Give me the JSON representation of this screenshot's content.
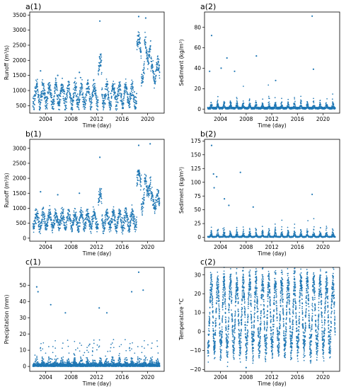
{
  "chart_data": [
    {
      "panel": "a(1)",
      "type": "scatter",
      "title": "a(1)",
      "xlabel": "Time (day)",
      "ylabel": "Runoff (m³/s)",
      "xlim": [
        2001.5,
        2022.6
      ],
      "ylim": [
        250,
        3600
      ],
      "xticks": [
        "2004",
        "2008",
        "2012",
        "2016",
        "2020"
      ],
      "yticks": [
        "500",
        "1000",
        "1500",
        "2000",
        "2500",
        "3000",
        "3500"
      ],
      "series": [
        {
          "kind": "runoff",
          "peaks": [
            {
              "x": 2012.5,
              "y": 3300
            },
            {
              "x": 2018.6,
              "y": 3450
            },
            {
              "x": 2019.7,
              "y": 3400
            },
            {
              "x": 2003.2,
              "y": 1650
            },
            {
              "x": 2005.9,
              "y": 1500
            },
            {
              "x": 2009.3,
              "y": 1600
            }
          ]
        }
      ],
      "color": "#1f77b4"
    },
    {
      "panel": "a(2)",
      "type": "scatter",
      "title": "a(2)",
      "xlabel": "Time (day)",
      "ylabel": "Sediment (kg/m³)",
      "xlim": [
        2001.5,
        2022.6
      ],
      "ylim": [
        -4,
        95
      ],
      "xticks": [
        "2004",
        "2008",
        "2012",
        "2016",
        "2020"
      ],
      "yticks": [
        "0",
        "20",
        "40",
        "60",
        "80"
      ],
      "series": [
        {
          "kind": "sediment",
          "peaks": [
            {
              "x": 2002.6,
              "y": 72
            },
            {
              "x": 2009.6,
              "y": 52
            },
            {
              "x": 2005.0,
              "y": 50
            },
            {
              "x": 2018.3,
              "y": 91
            },
            {
              "x": 2018.5,
              "y": 39
            },
            {
              "x": 2004.1,
              "y": 40
            },
            {
              "x": 2006.2,
              "y": 37
            },
            {
              "x": 2002.3,
              "y": 37
            },
            {
              "x": 2012.6,
              "y": 28
            }
          ]
        }
      ],
      "color": "#1f77b4"
    },
    {
      "panel": "b(1)",
      "type": "scatter",
      "title": "b(1)",
      "xlabel": "Time (day)",
      "ylabel": "Runoff (m³/s)",
      "xlim": [
        2001.5,
        2022.6
      ],
      "ylim": [
        -100,
        3300
      ],
      "xticks": [
        "2004",
        "2008",
        "2012",
        "2016",
        "2020"
      ],
      "yticks": [
        "0",
        "500",
        "1000",
        "1500",
        "2000",
        "2500",
        "3000"
      ],
      "series": [
        {
          "kind": "runoff",
          "peaks": [
            {
              "x": 2012.5,
              "y": 2700
            },
            {
              "x": 2018.6,
              "y": 3100
            },
            {
              "x": 2020.4,
              "y": 3150
            },
            {
              "x": 2003.2,
              "y": 1550
            },
            {
              "x": 2005.9,
              "y": 1450
            },
            {
              "x": 2009.3,
              "y": 1500
            }
          ]
        }
      ],
      "color": "#1f77b4"
    },
    {
      "panel": "b(2)",
      "type": "scatter",
      "title": "b(2)",
      "xlabel": "Time (day)",
      "ylabel": "Sediment (kg/m³)",
      "xlim": [
        2001.5,
        2022.6
      ],
      "ylim": [
        -7,
        178
      ],
      "xticks": [
        "2004",
        "2008",
        "2012",
        "2016",
        "2020"
      ],
      "yticks": [
        "0",
        "25",
        "50",
        "75",
        "100",
        "125",
        "150",
        "175"
      ],
      "series": [
        {
          "kind": "sediment",
          "peaks": [
            {
              "x": 2002.6,
              "y": 167
            },
            {
              "x": 2002.9,
              "y": 115
            },
            {
              "x": 2003.4,
              "y": 110
            },
            {
              "x": 2007.1,
              "y": 118
            },
            {
              "x": 2003.0,
              "y": 90
            },
            {
              "x": 2018.3,
              "y": 78
            },
            {
              "x": 2004.6,
              "y": 70
            },
            {
              "x": 2005.3,
              "y": 58
            },
            {
              "x": 2009.1,
              "y": 55
            }
          ]
        }
      ],
      "color": "#1f77b4"
    },
    {
      "panel": "c(1)",
      "type": "scatter",
      "title": "c(1)",
      "xlabel": "Time (day)",
      "ylabel": "Precipitation (mm)",
      "xlim": [
        2001.5,
        2022.6
      ],
      "ylim": [
        -3,
        61
      ],
      "xticks": [
        "2004",
        "2008",
        "2012",
        "2016",
        "2020"
      ],
      "yticks": [
        "0",
        "10",
        "20",
        "30",
        "40",
        "50"
      ],
      "series": [
        {
          "kind": "precip",
          "peaks": [
            {
              "x": 2018.6,
              "y": 58
            },
            {
              "x": 2002.6,
              "y": 49
            },
            {
              "x": 2002.8,
              "y": 46
            },
            {
              "x": 2019.3,
              "y": 47
            },
            {
              "x": 2017.5,
              "y": 46
            },
            {
              "x": 2004.8,
              "y": 38
            },
            {
              "x": 2012.4,
              "y": 36
            },
            {
              "x": 2007.1,
              "y": 33
            },
            {
              "x": 2013.6,
              "y": 33
            }
          ]
        }
      ],
      "color": "#1f77b4"
    },
    {
      "panel": "c(2)",
      "type": "scatter",
      "title": "c(2)",
      "xlabel": "Time (day)",
      "ylabel": "Temperature °C",
      "xlim": [
        2001.5,
        2022.6
      ],
      "ylim": [
        -21,
        34
      ],
      "xticks": [
        "2004",
        "2008",
        "2012",
        "2016",
        "2020"
      ],
      "yticks": [
        "−20",
        "−10",
        "0",
        "10",
        "20",
        "30"
      ],
      "series": [
        {
          "kind": "temp",
          "summer_max": 30,
          "winter_min": -12,
          "min_point": {
            "x": 2008.0,
            "y": -19
          }
        }
      ],
      "color": "#1f77b4"
    }
  ]
}
